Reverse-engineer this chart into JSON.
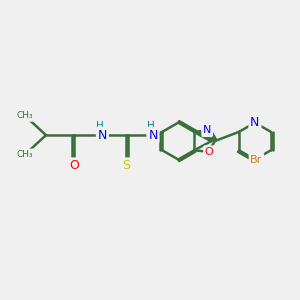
{
  "background_color": "#f0f0f0",
  "bond_color": "#3a6e3a",
  "atom_colors": {
    "N": "#0000ff",
    "O": "#ff0000",
    "S": "#cccc00",
    "Br": "#cc8800",
    "H": "#008888",
    "C": "#3a6e3a"
  },
  "figsize": [
    3.0,
    3.0
  ],
  "dpi": 100
}
